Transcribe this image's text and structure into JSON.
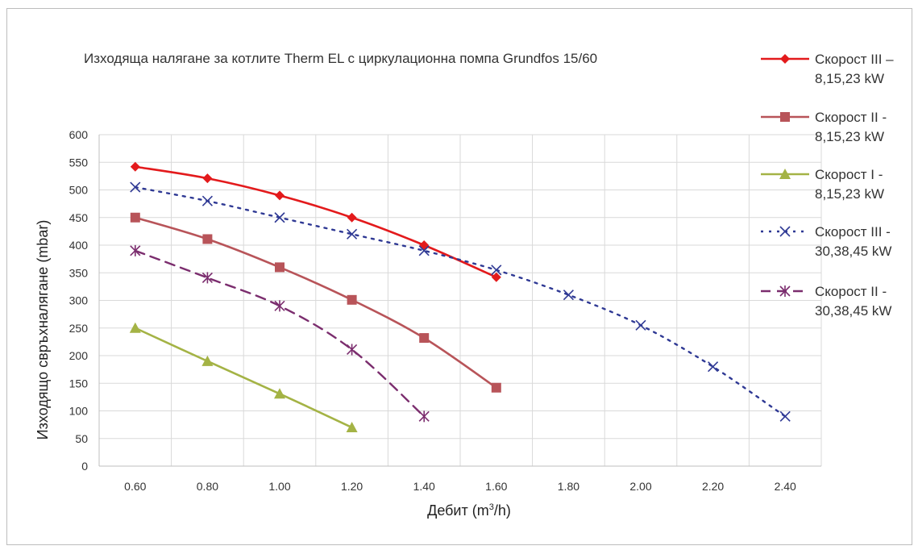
{
  "chart_data": {
    "type": "line",
    "title": "Изходяща налягане за котлите Therm EL с циркулационна помпа Grundfos 15/60",
    "ylabel": "Изходящо свръхналягане (mbar)",
    "xlabel_parts": [
      "Дебит (m",
      "3",
      "/h)"
    ],
    "categories": [
      "0.60",
      "0.80",
      "1.00",
      "1.20",
      "1.40",
      "1.60",
      "1.80",
      "2.00",
      "2.20",
      "2.40"
    ],
    "x": [
      0.6,
      0.8,
      1.0,
      1.2,
      1.4,
      1.6,
      1.8,
      2.0,
      2.2,
      2.4
    ],
    "ylim": [
      0,
      600
    ],
    "yticks": [
      0,
      50,
      100,
      150,
      200,
      250,
      300,
      350,
      400,
      450,
      500,
      550,
      600
    ],
    "ytick_labels": [
      "0",
      "50",
      "100",
      "150",
      "200",
      "250",
      "300",
      "350",
      "400",
      "450",
      "500",
      "550",
      "600"
    ],
    "grid": true,
    "legend_position": "right",
    "series": [
      {
        "legend": [
          "Скорост III –",
          "8,15,23 kW"
        ],
        "color": "#e31a1c",
        "marker": "diamond",
        "dash": "solid",
        "values": [
          542,
          521,
          490,
          450,
          400,
          342,
          null,
          null,
          null,
          null
        ]
      },
      {
        "legend": [
          "Скорост II -",
          "8,15,23 kW"
        ],
        "color": "#b85459",
        "marker": "square",
        "dash": "solid",
        "values": [
          450,
          411,
          360,
          301,
          232,
          142,
          null,
          null,
          null,
          null
        ]
      },
      {
        "legend": [
          "Скорост I -",
          "8,15,23 kW"
        ],
        "color": "#a4b345",
        "marker": "triangle",
        "dash": "solid",
        "values": [
          250,
          190,
          131,
          70,
          null,
          null,
          null,
          null,
          null,
          null
        ]
      },
      {
        "legend": [
          "Скорост III -",
          "30,38,45 kW"
        ],
        "color": "#2f3994",
        "marker": "x",
        "dash": "dotted",
        "values": [
          505,
          480,
          450,
          420,
          390,
          355,
          310,
          255,
          180,
          90
        ]
      },
      {
        "legend": [
          "Скорост II -",
          "30,38,45 kW"
        ],
        "color": "#7b2d6e",
        "marker": "star",
        "dash": "dashed",
        "values": [
          390,
          341,
          290,
          211,
          90,
          null,
          null,
          null,
          null,
          null
        ]
      }
    ]
  }
}
